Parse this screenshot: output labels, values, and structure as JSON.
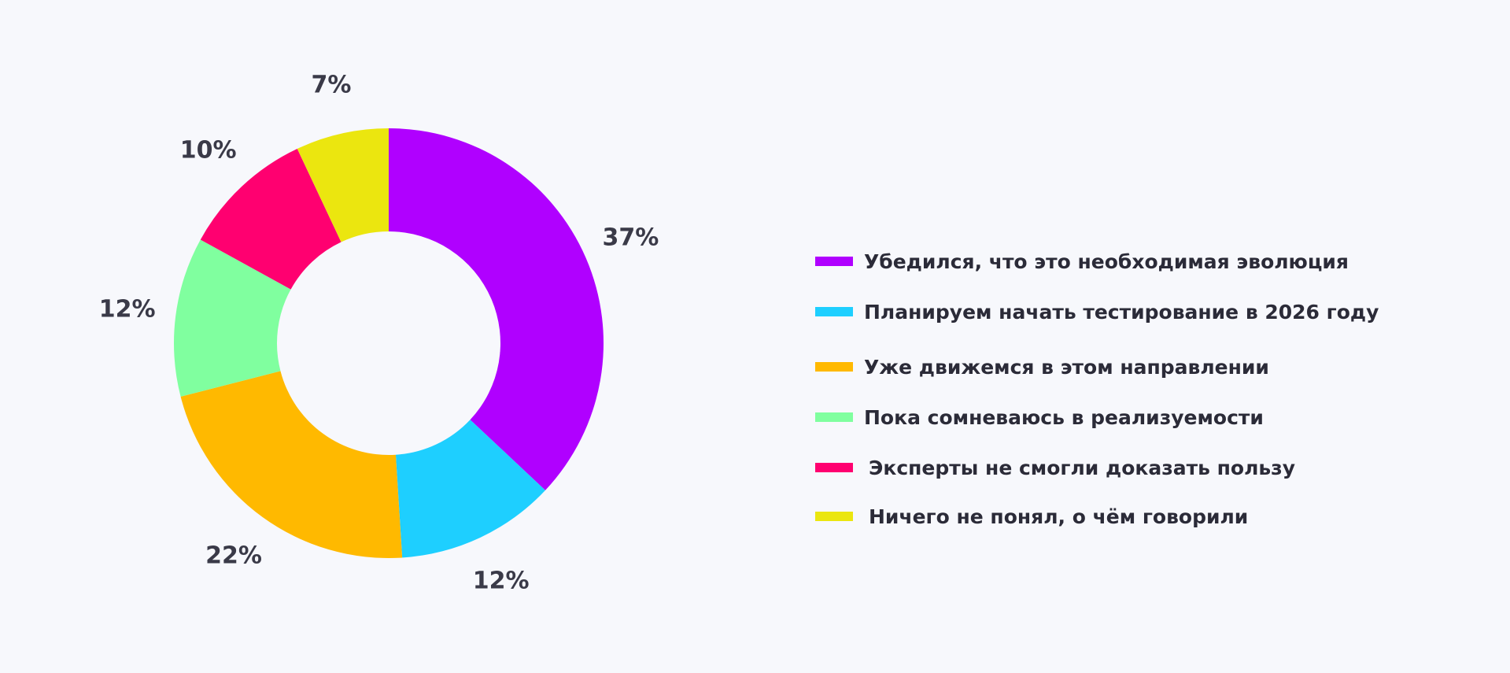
{
  "chart_data": {
    "type": "pie",
    "donut": true,
    "title": "",
    "slices": [
      {
        "label": "Убедился, что это необходимая эволюция",
        "value": 37,
        "display": "37%",
        "color": "#b000ff"
      },
      {
        "label": "Планируем начать тестирование в 2026 году",
        "value": 12,
        "display": "12%",
        "color": "#1ecfff"
      },
      {
        "label": "Уже движемся в этом направлении",
        "value": 22,
        "display": "22%",
        "color": "#ffb900"
      },
      {
        "label": "Пока сомневаюсь в реализуемости",
        "value": 12,
        "display": "12%",
        "color": "#80ff9f"
      },
      {
        "label": "Эксперты не смогли доказать пользу",
        "value": 10,
        "display": "10%",
        "color": "#ff0070"
      },
      {
        "label": "Ничего не понял, о чём говорили",
        "value": 7,
        "display": "7%",
        "color": "#ebe60f"
      }
    ],
    "legend": "right",
    "start_angle_deg": 0,
    "direction": "clockwise"
  }
}
